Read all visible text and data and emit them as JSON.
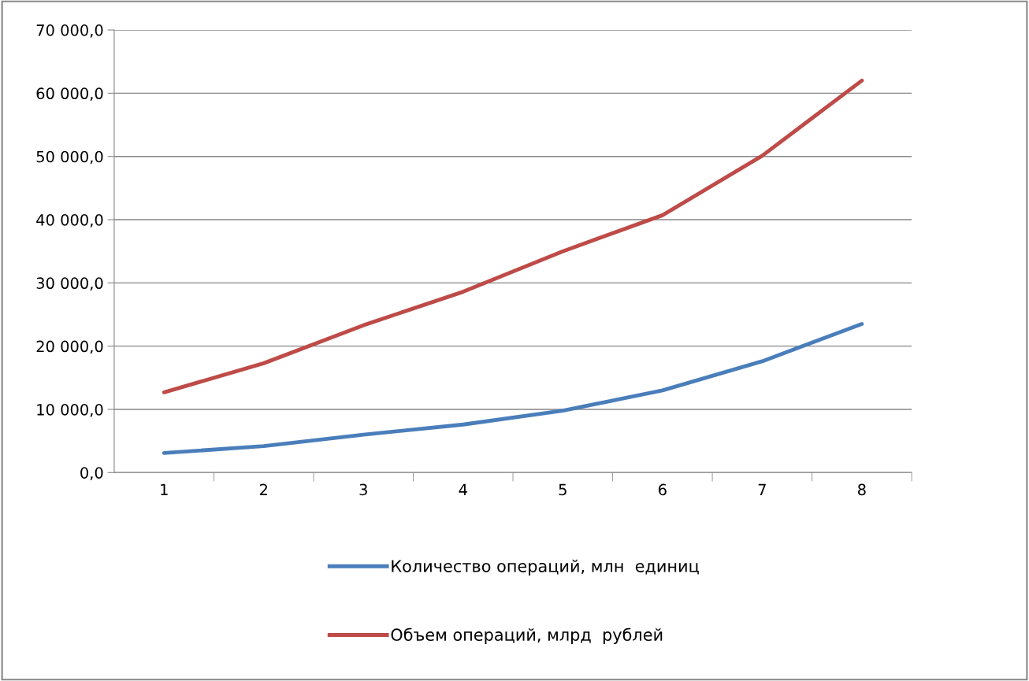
{
  "chart_data": {
    "type": "line",
    "categories": [
      "1",
      "2",
      "3",
      "4",
      "5",
      "6",
      "7",
      "8"
    ],
    "series": [
      {
        "name": "Количество операций, млн  единиц",
        "color": "#4a7ebb",
        "values": [
          3100,
          4200,
          6000,
          7600,
          9800,
          13000,
          17600,
          23500
        ]
      },
      {
        "name": "Объем операций, млрд  рублей",
        "color": "#be4b48",
        "values": [
          12700,
          17300,
          23300,
          28600,
          35000,
          40700,
          50100,
          62000
        ]
      }
    ],
    "ylim": [
      0,
      70000
    ],
    "yticks": [
      {
        "value": 0,
        "label": "0,0"
      },
      {
        "value": 10000,
        "label": "10 000,0"
      },
      {
        "value": 20000,
        "label": "20 000,0"
      },
      {
        "value": 30000,
        "label": "30 000,0"
      },
      {
        "value": 40000,
        "label": "40 000,0"
      },
      {
        "value": 50000,
        "label": "50 000,0"
      },
      {
        "value": 60000,
        "label": "60 000,0"
      },
      {
        "value": 70000,
        "label": "70 000,0"
      }
    ],
    "grid": "y",
    "legend": "bottom",
    "marker": "none",
    "line_style": "solid"
  }
}
